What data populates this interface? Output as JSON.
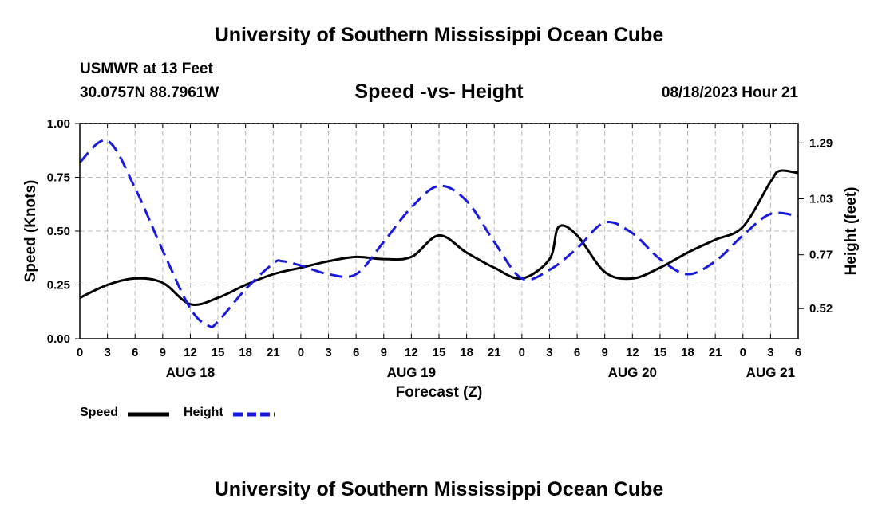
{
  "header": {
    "title": "University of Southern Mississippi Ocean Cube",
    "station": "USMWR at 13 Feet",
    "coords": "30.0757N  88.7961W",
    "issued": "08/18/2023 Hour 21",
    "footer_title": "University of Southern Mississippi Ocean Cube"
  },
  "legend": {
    "speed_label": "Speed",
    "height_label": "Height"
  },
  "chart_data": {
    "type": "line",
    "title": "Speed -vs- Height",
    "xlabel": "Forecast (Z)",
    "ylabel": "Speed (Knots)",
    "y2label": "Height (feet)",
    "x_unit": "forecast hour from 00Z Aug 18",
    "xlim": [
      0,
      78
    ],
    "ylim": [
      0,
      1.0
    ],
    "y2lim": [
      0.38,
      1.38
    ],
    "yticks": [
      0.0,
      0.25,
      0.5,
      0.75,
      1.0
    ],
    "ytick_labels": [
      "0.00",
      "0.25",
      "0.50",
      "0.75",
      "1.00"
    ],
    "y2ticks": [
      0.52,
      0.77,
      1.03,
      1.29
    ],
    "y2tick_labels": [
      "0.52",
      "0.77",
      "1.03",
      "1.29"
    ],
    "xticks": [
      0,
      3,
      6,
      9,
      12,
      15,
      18,
      21,
      24,
      27,
      30,
      33,
      36,
      39,
      42,
      45,
      48,
      51,
      54,
      57,
      60,
      63,
      66,
      69,
      72,
      75,
      78
    ],
    "xtick_labels": [
      "0",
      "3",
      "6",
      "9",
      "12",
      "15",
      "18",
      "21",
      "0",
      "3",
      "6",
      "9",
      "12",
      "15",
      "18",
      "21",
      "0",
      "3",
      "6",
      "9",
      "12",
      "15",
      "18",
      "21",
      "0",
      "3",
      "6"
    ],
    "day_labels": [
      {
        "x": 12,
        "label": "AUG 18"
      },
      {
        "x": 36,
        "label": "AUG 19"
      },
      {
        "x": 60,
        "label": "AUG 20"
      },
      {
        "x": 75,
        "label": "AUG 21"
      }
    ],
    "grid": true,
    "series": [
      {
        "name": "Speed",
        "axis": "left",
        "color": "#000000",
        "dash": "solid",
        "x": [
          0,
          3,
          6,
          9,
          12,
          15,
          18,
          21,
          24,
          27,
          30,
          33,
          36,
          39,
          42,
          45,
          48,
          51,
          52,
          54,
          57,
          60,
          63,
          66,
          69,
          72,
          75,
          76,
          78
        ],
        "y": [
          0.19,
          0.25,
          0.28,
          0.26,
          0.16,
          0.19,
          0.25,
          0.3,
          0.33,
          0.36,
          0.38,
          0.37,
          0.38,
          0.48,
          0.4,
          0.33,
          0.28,
          0.37,
          0.52,
          0.48,
          0.31,
          0.28,
          0.33,
          0.4,
          0.46,
          0.52,
          0.73,
          0.78,
          0.77
        ]
      },
      {
        "name": "Height",
        "axis": "right",
        "color": "#1a1adf",
        "dash": "dashed",
        "x": [
          0,
          3,
          6,
          9,
          12,
          14,
          15,
          18,
          21,
          22,
          24,
          27,
          30,
          33,
          36,
          39,
          42,
          45,
          48,
          51,
          54,
          57,
          60,
          63,
          66,
          69,
          72,
          75,
          78
        ],
        "y": [
          1.2,
          1.3,
          1.08,
          0.79,
          0.52,
          0.44,
          0.46,
          0.61,
          0.73,
          0.74,
          0.72,
          0.68,
          0.68,
          0.83,
          0.99,
          1.09,
          1.02,
          0.83,
          0.66,
          0.7,
          0.8,
          0.92,
          0.87,
          0.75,
          0.68,
          0.74,
          0.86,
          0.96,
          0.95
        ]
      }
    ]
  }
}
